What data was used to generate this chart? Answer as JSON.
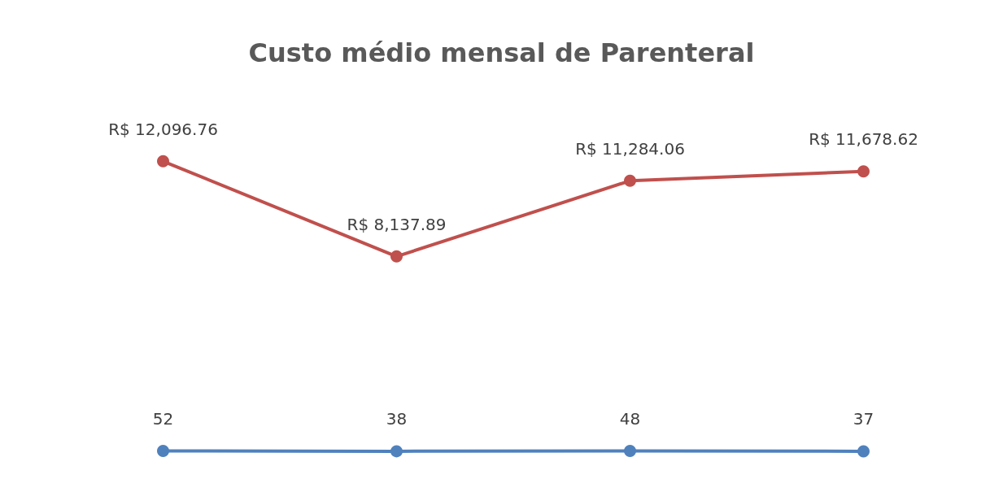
{
  "chart_data": {
    "type": "line",
    "title": "Custo médio mensal de Parenteral",
    "categories": [
      null,
      null,
      null,
      null
    ],
    "marker": "circle",
    "line_style": "solid",
    "series": [
      {
        "color": "#c0504d",
        "values": [
          12096.76,
          8137.89,
          11284.06,
          11678.62
        ],
        "value_labels": [
          "R$ 12,096.76",
          "R$ 8,137.89",
          "R$ 11,284.06",
          "R$ 11,678.62"
        ]
      },
      {
        "color": "#4f81bd",
        "values": [
          52,
          38,
          48,
          37
        ],
        "value_labels": [
          "52",
          "38",
          "48",
          "37"
        ]
      }
    ]
  }
}
